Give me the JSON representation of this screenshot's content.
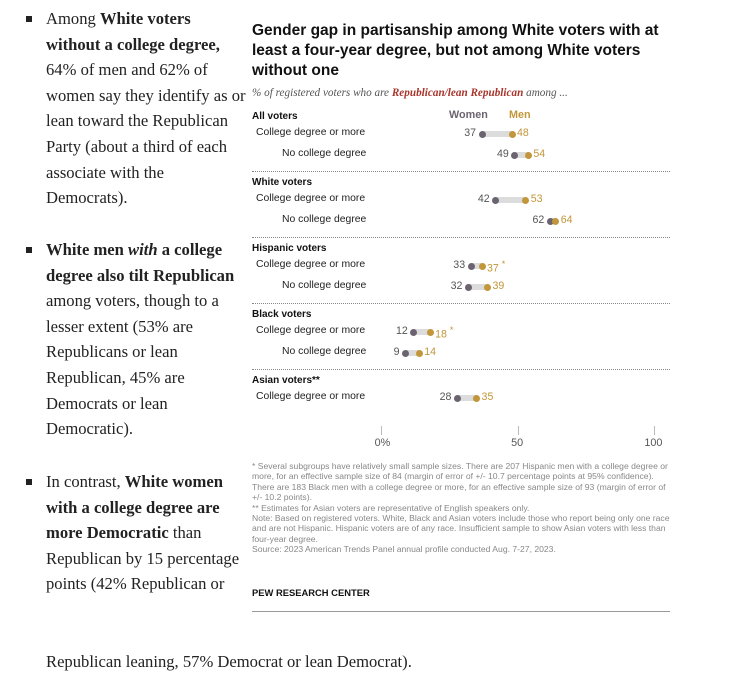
{
  "article": {
    "bullet1": {
      "t1": "Among ",
      "b1": "White voters without a college degree,",
      "t2": " 64% of men and 62% of women say they identify as or lean toward the Republican Party (about a third of each associate with the Democrats)."
    },
    "bullet2": {
      "b1": "White men ",
      "i1": "with",
      "b2": " a college degree also tilt Republican",
      "t1": " among voters, though to a lesser extent (53% are Republicans or lean Republican, 45% are Democrats or lean Democratic)."
    },
    "bullet3": {
      "t1": "In contrast, ",
      "b1": "White women with a college degree are more Democratic",
      "t2": " than Republican by 15 percentage points (42% Republican or"
    },
    "tail": "Republican leaning, 57% Democrat or lean Democrat)."
  },
  "chart_data": {
    "type": "dot",
    "title": "Gender gap in partisanship among White voters with at least a four-year degree, but not among White voters without one",
    "subtitle_pre": "% of registered voters who are ",
    "subtitle_hl": "Republican/lean Republican",
    "subtitle_post": " among ...",
    "series": [
      {
        "name": "Women",
        "color": "#6b6470"
      },
      {
        "name": "Men",
        "color": "#c2963a"
      }
    ],
    "xlim": [
      0,
      100
    ],
    "ticks": [
      {
        "value": 0,
        "label": "0%"
      },
      {
        "value": 50,
        "label": "50"
      },
      {
        "value": 100,
        "label": "100"
      }
    ],
    "groups": [
      {
        "name": "All voters",
        "rows": [
          {
            "label": "College degree or more",
            "women": 37,
            "men": 48,
            "note": ""
          },
          {
            "label": "No college degree",
            "women": 49,
            "men": 54,
            "note": ""
          }
        ]
      },
      {
        "name": "White voters",
        "rows": [
          {
            "label": "College degree or more",
            "women": 42,
            "men": 53,
            "note": ""
          },
          {
            "label": "No college degree",
            "women": 62,
            "men": 64,
            "note": ""
          }
        ]
      },
      {
        "name": "Hispanic voters",
        "rows": [
          {
            "label": "College degree or more",
            "women": 33,
            "men": 37,
            "note": "*"
          },
          {
            "label": "No college degree",
            "women": 32,
            "men": 39,
            "note": ""
          }
        ]
      },
      {
        "name": "Black voters",
        "rows": [
          {
            "label": "College degree or more",
            "women": 12,
            "men": 18,
            "note": "*"
          },
          {
            "label": "No college degree",
            "women": 9,
            "men": 14,
            "note": ""
          }
        ]
      },
      {
        "name": "Asian voters**",
        "rows": [
          {
            "label": "College degree or more",
            "women": 28,
            "men": 35,
            "note": ""
          }
        ]
      }
    ],
    "notes": [
      "* Several subgroups have relatively small sample sizes. There are 207 Hispanic men with a college degree or more, for an effective sample size of 84 (margin of error of +/- 10.7 percentage points at 95% confidence). There are 183 Black men with a college degree or more, for an effective sample size of 93 (margin of error of +/- 10.2 points).",
      "** Estimates for Asian voters are representative of English speakers only.",
      "Note: Based on registered voters. White, Black and Asian voters include those who report being only one race and are not Hispanic. Hispanic voters are of any race. Insufficient sample to show Asian voters with less than four-year degree.",
      "Source: 2023 American Trends Panel annual profile conducted Aug. 7-27, 2023."
    ],
    "source_org": "PEW RESEARCH CENTER"
  }
}
